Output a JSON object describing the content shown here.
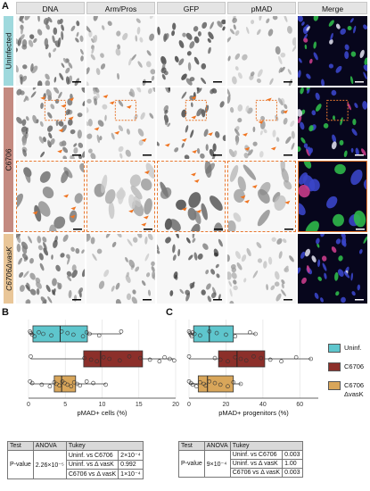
{
  "panelA": {
    "letter": "A",
    "columns": [
      "DNA",
      "Arm/Pros",
      "GFP",
      "pMAD",
      "Merge"
    ],
    "rows": [
      {
        "label": "Uninfected",
        "color": "#9fd9dd"
      },
      {
        "label": "C6706",
        "color": "#c48a80"
      },
      {
        "label": "C6706ΔvasK",
        "color": "#e9c698"
      }
    ]
  },
  "panelB": {
    "letter": "B",
    "chart_data": {
      "type": "boxplot",
      "xlabel": "pMAD+ cells (%)",
      "xlim": [
        0,
        20
      ],
      "xticks": [
        0,
        5,
        10,
        15,
        20
      ],
      "groups": [
        {
          "name": "Uninf.",
          "color": "#5ec6cd",
          "min": 0.2,
          "q1": 0.6,
          "median": 4.3,
          "q3": 8.0,
          "max": 12.6,
          "points": [
            0.2,
            0.3,
            0.5,
            0.8,
            1.4,
            2.0,
            3.1,
            4.5,
            5.3,
            6.1,
            7.4,
            7.9,
            8.3,
            9.6,
            12.6
          ]
        },
        {
          "name": "C6706",
          "color": "#8c2f2a",
          "min": 0.3,
          "q1": 7.5,
          "median": 9.8,
          "q3": 15.5,
          "max": 19.8,
          "points": [
            0.3,
            7.6,
            8.5,
            9.3,
            10.2,
            11.0,
            12.4,
            13.7,
            15.2,
            16.5,
            17.8,
            18.5,
            19.2,
            19.8
          ]
        },
        {
          "name": "C6706 ΔvasK",
          "color": "#d9a65a",
          "min": 0.2,
          "q1": 3.5,
          "median": 4.5,
          "q3": 6.4,
          "max": 10.5,
          "points": [
            0.2,
            0.5,
            1.8,
            2.9,
            3.5,
            3.8,
            4.2,
            4.6,
            4.9,
            5.3,
            5.8,
            6.2,
            6.6,
            7.0,
            7.9,
            8.8,
            10.5
          ]
        }
      ]
    },
    "table": {
      "headers": [
        "Test",
        "ANOVA",
        "Tukey"
      ],
      "row_label": "P-value",
      "anova": "2.26×10⁻⁵",
      "comparisons": [
        {
          "label": "Uninf. vs C6706",
          "value": "2×10⁻⁴"
        },
        {
          "label": "Uninf. vs Δ vasK",
          "value": "0.992"
        },
        {
          "label": "C6706 vs Δ vasK",
          "value": "1×10⁻⁴"
        }
      ]
    }
  },
  "panelC": {
    "letter": "C",
    "chart_data": {
      "type": "boxplot",
      "xlabel": "pMAD+ progenitors (%)",
      "xlim": [
        0,
        70
      ],
      "xticks": [
        0,
        20,
        40,
        60
      ],
      "groups": [
        {
          "name": "Uninf.",
          "color": "#5ec6cd",
          "min": 0,
          "q1": 2.5,
          "median": 11,
          "q3": 24,
          "max": 36,
          "points": [
            0,
            0.5,
            1,
            1.5,
            2,
            3,
            6,
            11,
            15,
            20,
            25,
            33,
            36
          ]
        },
        {
          "name": "C6706",
          "color": "#8c2f2a",
          "min": 0,
          "q1": 16,
          "median": 26,
          "q3": 41,
          "max": 66,
          "points": [
            0,
            14,
            17,
            21,
            25,
            28,
            31,
            35,
            39,
            44,
            50,
            58,
            66
          ]
        },
        {
          "name": "C6706 ΔvasK",
          "color": "#d9a65a",
          "min": 0,
          "q1": 5,
          "median": 10,
          "q3": 24,
          "max": 28,
          "points": [
            0,
            1,
            2,
            4,
            6,
            8,
            9,
            11,
            14,
            17,
            21,
            24,
            28
          ]
        }
      ]
    },
    "table": {
      "headers": [
        "Test",
        "ANOVA",
        "Tukey"
      ],
      "row_label": "P-value",
      "anova": "9×10⁻⁴",
      "comparisons": [
        {
          "label": "Uninf. vs C6706",
          "value": "0.003"
        },
        {
          "label": "Uninf. vs Δ vasK",
          "value": "1.00"
        },
        {
          "label": "C6706 vs Δ vasK",
          "value": "0.003"
        }
      ]
    }
  },
  "legend": [
    {
      "label": "Uninf.",
      "color": "#5ec6cd"
    },
    {
      "label": "C6706",
      "color": "#8c2f2a"
    },
    {
      "label": "C6706 ΔvasK",
      "color": "#d9a65a"
    }
  ]
}
